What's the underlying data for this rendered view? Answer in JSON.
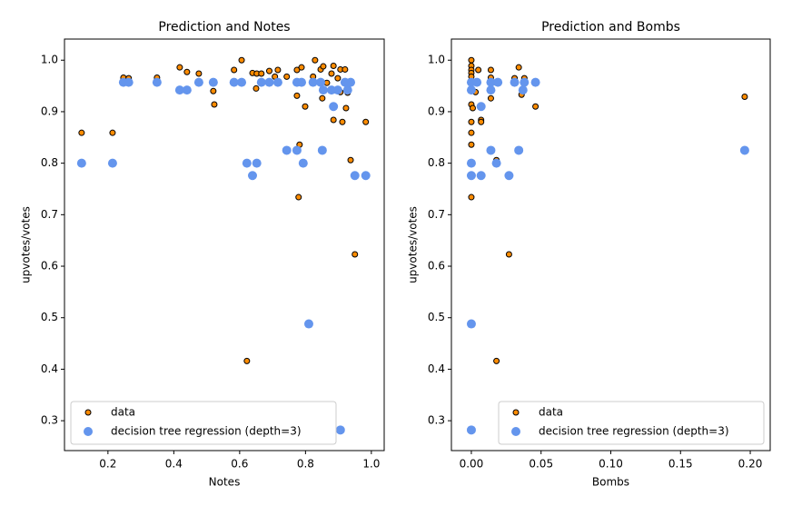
{
  "chart_data": [
    {
      "type": "scatter",
      "title": "Prediction and Notes",
      "xlabel": "Notes",
      "ylabel": "upvotes/votes",
      "xlim": [
        0.068,
        1.039
      ],
      "ylim": [
        0.242,
        1.041
      ],
      "xticks": [
        0.2,
        0.4,
        0.6,
        0.8,
        {
          "value": 1,
          "label": "1.0"
        }
      ],
      "yticks": [
        0.3,
        0.4,
        0.5,
        0.6,
        0.7,
        0.8,
        0.9,
        {
          "value": 1,
          "label": "1.0"
        }
      ],
      "legend": "lower left",
      "series": [
        {
          "name": "data",
          "color": "#ff8c00",
          "edgecolor": "#000000",
          "x": [
            0.12,
            0.214,
            0.247,
            0.263,
            0.349,
            0.418,
            0.44,
            0.476,
            0.52,
            0.523,
            0.583,
            0.606,
            0.639,
            0.652,
            0.666,
            0.65,
            0.69,
            0.707,
            0.716,
            0.622,
            0.743,
            0.774,
            0.774,
            0.788,
            0.782,
            0.779,
            0.799,
            0.823,
            0.829,
            0.846,
            0.854,
            0.851,
            0.879,
            0.885,
            0.885,
            0.898,
            0.906,
            0.912,
            0.92,
            0.923,
            0.928,
            0.937,
            0.95,
            0.983,
            0.865,
            0.906
          ],
          "values": [
            0.859,
            0.859,
            0.966,
            0.965,
            0.966,
            0.986,
            0.977,
            0.974,
            0.94,
            0.914,
            0.981,
            1.0,
            0.975,
            0.974,
            0.974,
            0.945,
            0.979,
            0.968,
            0.981,
            0.416,
            0.968,
            0.931,
            0.981,
            0.986,
            0.836,
            0.734,
            0.91,
            0.968,
            1.0,
            0.982,
            0.988,
            0.926,
            0.974,
            0.989,
            0.884,
            0.965,
            0.982,
            0.88,
            0.982,
            0.907,
            0.937,
            0.806,
            0.623,
            0.88,
            0.956,
            0.938
          ]
        },
        {
          "name": "decision tree regression (depth=3)",
          "color": "#6495ed",
          "x": [
            0.12,
            0.214,
            0.247,
            0.263,
            0.349,
            0.418,
            0.44,
            0.476,
            0.52,
            0.583,
            0.606,
            0.622,
            0.639,
            0.652,
            0.666,
            0.69,
            0.716,
            0.743,
            0.774,
            0.774,
            0.788,
            0.793,
            0.81,
            0.823,
            0.846,
            0.854,
            0.879,
            0.885,
            0.851,
            0.906,
            0.898,
            0.92,
            0.928,
            0.937,
            0.95,
            0.983
          ],
          "values": [
            0.8,
            0.8,
            0.957,
            0.957,
            0.957,
            0.942,
            0.942,
            0.957,
            0.957,
            0.957,
            0.957,
            0.8,
            0.776,
            0.8,
            0.957,
            0.957,
            0.957,
            0.825,
            0.825,
            0.957,
            0.957,
            0.8,
            0.488,
            0.957,
            0.957,
            0.942,
            0.942,
            0.91,
            0.825,
            0.282,
            0.942,
            0.957,
            0.942,
            0.957,
            0.776,
            0.776
          ]
        }
      ]
    },
    {
      "type": "scatter",
      "title": "Prediction and Bombs",
      "xlabel": "Bombs",
      "ylabel": "upvotes/votes",
      "xlim": [
        -0.0143,
        0.2143
      ],
      "ylim": [
        0.242,
        1.041
      ],
      "xticks": [
        {
          "value": 0,
          "label": "0.00"
        },
        {
          "value": 0.05,
          "label": "0.05"
        },
        {
          "value": 0.1,
          "label": "0.10"
        },
        {
          "value": 0.15,
          "label": "0.15"
        },
        {
          "value": 0.2,
          "label": "0.20"
        }
      ],
      "yticks": [
        0.3,
        0.4,
        0.5,
        0.6,
        0.7,
        0.8,
        0.9,
        {
          "value": 1,
          "label": "1.0"
        }
      ],
      "legend": "lower right",
      "series": [
        {
          "name": "data",
          "color": "#ff8c00",
          "edgecolor": "#000000",
          "x": [
            0,
            0,
            0,
            0,
            0,
            0,
            0,
            0.001,
            0,
            0,
            0,
            0,
            0.005,
            0.003,
            0.007,
            0.007,
            0.014,
            0.014,
            0.014,
            0.018,
            0.018,
            0.018,
            0.027,
            0.031,
            0.034,
            0.036,
            0.038,
            0.046,
            0.196
          ],
          "values": [
            1.0,
            0.989,
            0.981,
            0.975,
            0.968,
            0.94,
            0.914,
            0.907,
            0.88,
            0.859,
            0.836,
            0.734,
            0.981,
            0.938,
            0.884,
            0.88,
            0.981,
            0.966,
            0.926,
            0.806,
            0.416,
            0.956,
            0.623,
            0.965,
            0.986,
            0.933,
            0.965,
            0.91,
            0.929
          ]
        },
        {
          "name": "decision tree regression (depth=3)",
          "color": "#6495ed",
          "x": [
            0,
            0,
            0,
            0,
            0,
            0,
            0.004,
            0.007,
            0.007,
            0.014,
            0.014,
            0.014,
            0.018,
            0.019,
            0.027,
            0.031,
            0.034,
            0.037,
            0.038,
            0.046,
            0.196
          ],
          "values": [
            0.957,
            0.942,
            0.8,
            0.776,
            0.488,
            0.282,
            0.957,
            0.91,
            0.776,
            0.957,
            0.942,
            0.825,
            0.8,
            0.957,
            0.776,
            0.957,
            0.825,
            0.942,
            0.957,
            0.957,
            0.825
          ]
        }
      ]
    }
  ]
}
